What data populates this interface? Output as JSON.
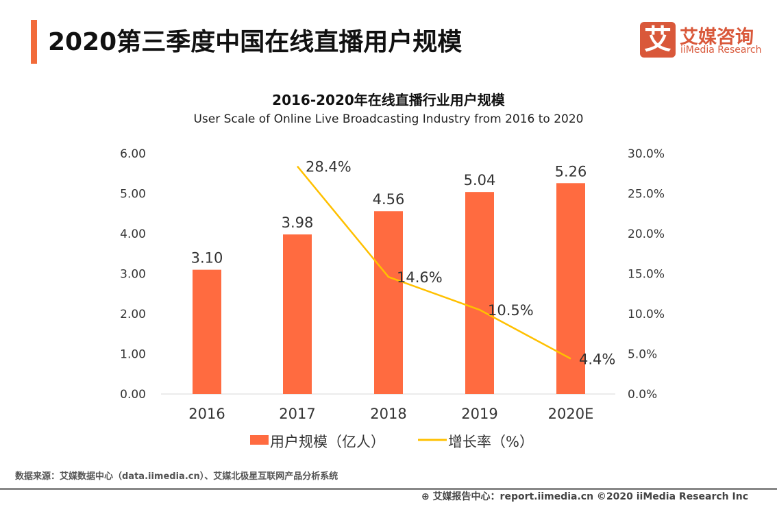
{
  "header": {
    "title": "2020第三季度中国在线直播用户规模",
    "logo": {
      "mark": "艾",
      "cn": "艾媒咨询",
      "en": "iiMedia Research"
    }
  },
  "chart_data": {
    "type": "bar+line",
    "title": "2016-2020年在线直播行业用户规模",
    "subtitle": "User Scale of Online Live Broadcasting Industry from 2016 to 2020",
    "categories": [
      "2016",
      "2017",
      "2018",
      "2019",
      "2020E"
    ],
    "y_left": {
      "range": [
        0,
        6
      ],
      "ticks": [
        "0.00",
        "1.00",
        "2.00",
        "3.00",
        "4.00",
        "5.00",
        "6.00"
      ]
    },
    "y_right": {
      "range": [
        0,
        30
      ],
      "ticks": [
        "0.0%",
        "5.0%",
        "10.0%",
        "15.0%",
        "20.0%",
        "25.0%",
        "30.0%"
      ]
    },
    "series": [
      {
        "name": "用户规模（亿人）",
        "type": "bar",
        "color": "#ff6b40",
        "values": [
          3.1,
          3.98,
          4.56,
          5.04,
          5.26
        ],
        "labels": [
          "3.10",
          "3.98",
          "4.56",
          "5.04",
          "5.26"
        ]
      },
      {
        "name": "增长率（%）",
        "type": "line",
        "color": "#ffc000",
        "values": [
          null,
          28.4,
          14.6,
          10.5,
          4.4
        ],
        "labels": [
          "",
          "28.4%",
          "14.6%",
          "10.5%",
          "4.4%"
        ]
      }
    ],
    "grid": false,
    "legend": "bottom"
  },
  "footer": {
    "source": "数据来源：艾媒数据中心（data.iimedia.cn）、艾媒北极星互联网产品分析系统",
    "report": "艾媒报告中心：report.iimedia.cn   ©2020  iiMedia Research  Inc"
  }
}
